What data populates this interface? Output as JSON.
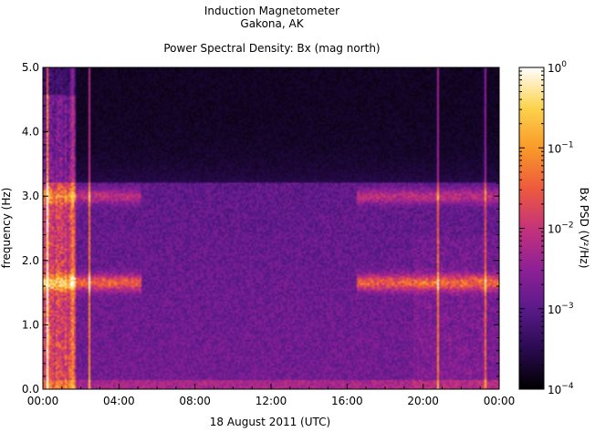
{
  "chart_data": {
    "type": "heatmap",
    "title_lines": [
      "Induction Magnetometer",
      "Gakona, AK"
    ],
    "subtitle": "Power Spectral Density: Bx (mag north)",
    "xlabel": "18 August 2011 (UTC)",
    "ylabel": "frequency (Hz)",
    "x_ticks": [
      "00:00",
      "04:00",
      "08:00",
      "12:00",
      "16:00",
      "20:00",
      "00:00"
    ],
    "x_tick_hours": [
      0,
      4,
      8,
      12,
      16,
      20,
      24
    ],
    "xlim_hours": [
      0,
      24
    ],
    "y_ticks": [
      "0.0",
      "1.0",
      "2.0",
      "3.0",
      "4.0",
      "5.0"
    ],
    "y_tick_values": [
      0,
      1,
      2,
      3,
      4,
      5
    ],
    "ylim_hz": [
      0,
      5
    ],
    "colorbar": {
      "label": "Bx PSD (V²/Hz)",
      "scale": "log",
      "range": [
        0.0001,
        1
      ],
      "ticks": [
        {
          "base": "10",
          "exp": "0",
          "value": 1
        },
        {
          "base": "10",
          "exp": "−1",
          "value": 0.1
        },
        {
          "base": "10",
          "exp": "−2",
          "value": 0.01
        },
        {
          "base": "10",
          "exp": "−3",
          "value": 0.001
        },
        {
          "base": "10",
          "exp": "−4",
          "value": 0.0001
        }
      ],
      "colors": [
        "#000000",
        "#2a0a50",
        "#5a1a8a",
        "#8f2096",
        "#c5337a",
        "#ee5a3c",
        "#f99a2a",
        "#fcd34d",
        "#ffffff"
      ]
    },
    "features": {
      "pc1_bands_hz": [
        1.65,
        3.0
      ],
      "pc1_active_intervals_hours": [
        [
          0,
          5.2
        ],
        [
          16.5,
          24
        ]
      ],
      "broadband_hours": [
        0.2,
        1.5,
        2.4,
        20.8,
        23.3
      ],
      "background_cutoff_hz": 3.2
    }
  }
}
